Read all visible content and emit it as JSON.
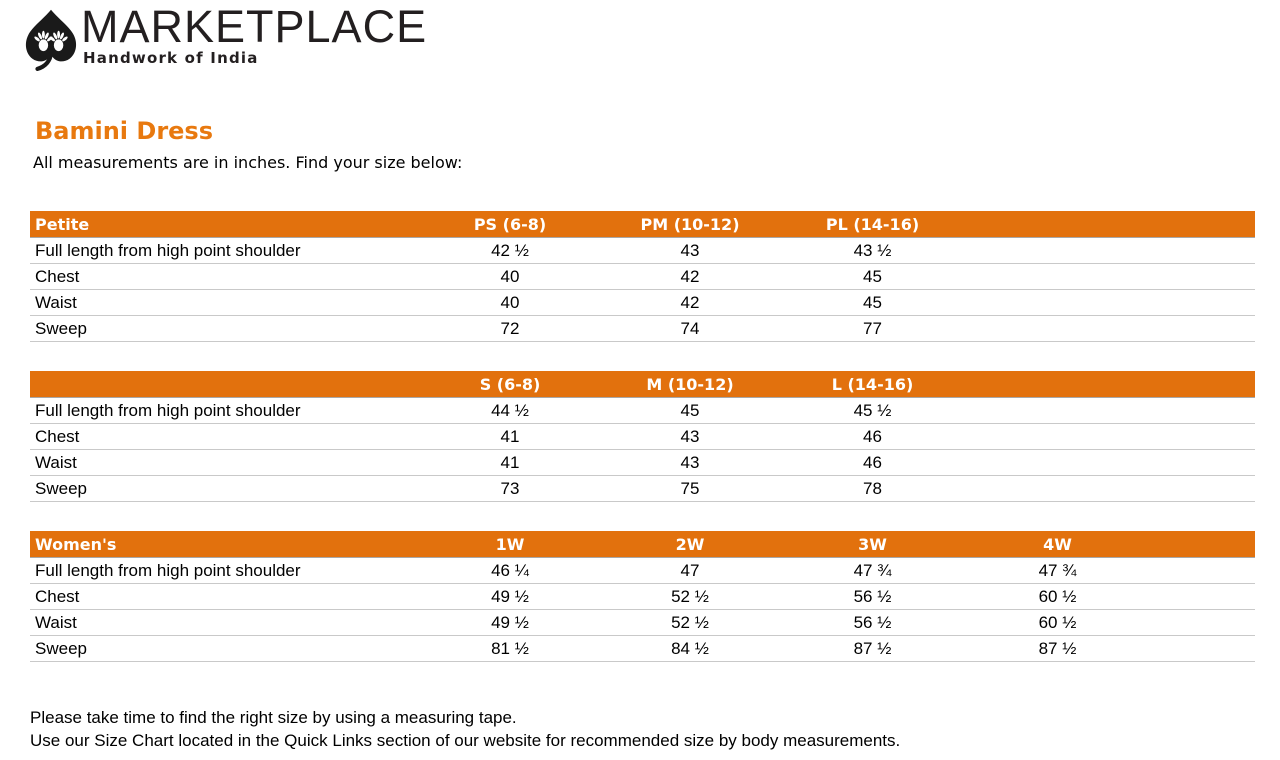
{
  "brand": {
    "name": "MARKETPLACE",
    "tagline": "Handwork of India",
    "logo_icon": "hands-in-leaf-logo"
  },
  "page": {
    "title": "Bamini Dress",
    "subtitle": "All measurements are in inches. Find your size below:",
    "footnotes": [
      "Please take time to find the right size by using a measuring tape.",
      "Use our Size Chart located in the Quick Links section of our website for recommended size by body measurements."
    ]
  },
  "colors": {
    "header_bar_orange": "#e2710d",
    "title_orange": "#e8790f",
    "header_text": "#ffffff",
    "row_divider": "#c9c9c9",
    "body_text": "#000000",
    "logo_black": "#231f20"
  },
  "tables": [
    {
      "name": "Petite",
      "columns": [
        "PS (6-8)",
        "PM (10-12)",
        "PL (14-16)",
        ""
      ],
      "rows": [
        {
          "label": "Full length from high point shoulder",
          "values": [
            "42 ½",
            "43",
            "43 ½",
            ""
          ]
        },
        {
          "label": "Chest",
          "values": [
            "40",
            "42",
            "45",
            ""
          ]
        },
        {
          "label": "Waist",
          "values": [
            "40",
            "42",
            "45",
            ""
          ]
        },
        {
          "label": "Sweep",
          "values": [
            "72",
            "74",
            "77",
            ""
          ]
        }
      ]
    },
    {
      "name": "",
      "columns": [
        "S (6-8)",
        "M (10-12)",
        "L (14-16)",
        ""
      ],
      "rows": [
        {
          "label": "Full length from high point shoulder",
          "values": [
            "44 ½",
            "45",
            "45 ½",
            ""
          ]
        },
        {
          "label": "Chest",
          "values": [
            "41",
            "43",
            "46",
            ""
          ]
        },
        {
          "label": "Waist",
          "values": [
            "41",
            "43",
            "46",
            ""
          ]
        },
        {
          "label": "Sweep",
          "values": [
            "73",
            "75",
            "78",
            ""
          ]
        }
      ]
    },
    {
      "name": "Women's",
      "columns": [
        "1W",
        "2W",
        "3W",
        "4W"
      ],
      "rows": [
        {
          "label": "Full length from high point shoulder",
          "values": [
            "46 ¼",
            "47",
            "47 ¾",
            "47 ¾"
          ]
        },
        {
          "label": "Chest",
          "values": [
            "49 ½",
            "52 ½",
            "56 ½",
            "60 ½"
          ]
        },
        {
          "label": "Waist",
          "values": [
            "49 ½",
            "52 ½",
            "56 ½",
            "60 ½"
          ]
        },
        {
          "label": "Sweep",
          "values": [
            "81 ½",
            "84 ½",
            "87 ½",
            "87 ½"
          ]
        }
      ]
    }
  ]
}
